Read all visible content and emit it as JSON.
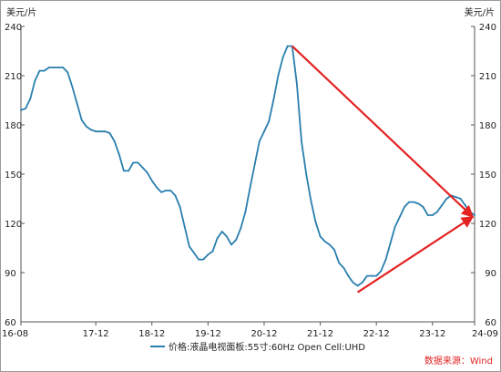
{
  "chart_data": {
    "type": "line",
    "title": "",
    "unit_left": "美元/片",
    "unit_right": "美元/片",
    "ylim": [
      60,
      240
    ],
    "y_ticks": [
      60,
      90,
      120,
      150,
      180,
      210,
      240
    ],
    "x_ticks": [
      "16-08",
      "17-12",
      "18-12",
      "19-12",
      "20-12",
      "21-12",
      "22-12",
      "23-12",
      "24-09"
    ],
    "grid": false,
    "legend_position": "bottom",
    "series": [
      {
        "name": "价格:液晶电视面板:55寸:60Hz Open Cell:UHD",
        "color": "#2a7fae",
        "points": [
          [
            "2016-08",
            189
          ],
          [
            "2016-09",
            190
          ],
          [
            "2016-10",
            196
          ],
          [
            "2016-11",
            207
          ],
          [
            "2016-12",
            213
          ],
          [
            "2017-01",
            213
          ],
          [
            "2017-02",
            215
          ],
          [
            "2017-03",
            215
          ],
          [
            "2017-04",
            215
          ],
          [
            "2017-05",
            215
          ],
          [
            "2017-06",
            212
          ],
          [
            "2017-07",
            203
          ],
          [
            "2017-08",
            193
          ],
          [
            "2017-09",
            183
          ],
          [
            "2017-10",
            179
          ],
          [
            "2017-11",
            177
          ],
          [
            "2017-12",
            176
          ],
          [
            "2018-01",
            176
          ],
          [
            "2018-02",
            176
          ],
          [
            "2018-03",
            175
          ],
          [
            "2018-04",
            170
          ],
          [
            "2018-05",
            162
          ],
          [
            "2018-06",
            152
          ],
          [
            "2018-07",
            152
          ],
          [
            "2018-08",
            157
          ],
          [
            "2018-09",
            157
          ],
          [
            "2018-10",
            154
          ],
          [
            "2018-11",
            151
          ],
          [
            "2018-12",
            146
          ],
          [
            "2019-01",
            142
          ],
          [
            "2019-02",
            139
          ],
          [
            "2019-03",
            140
          ],
          [
            "2019-04",
            140
          ],
          [
            "2019-05",
            137
          ],
          [
            "2019-06",
            130
          ],
          [
            "2019-07",
            118
          ],
          [
            "2019-08",
            106
          ],
          [
            "2019-09",
            102
          ],
          [
            "2019-10",
            98
          ],
          [
            "2019-11",
            98
          ],
          [
            "2019-12",
            101
          ],
          [
            "2020-01",
            103
          ],
          [
            "2020-02",
            111
          ],
          [
            "2020-03",
            115
          ],
          [
            "2020-04",
            112
          ],
          [
            "2020-05",
            107
          ],
          [
            "2020-06",
            110
          ],
          [
            "2020-07",
            117
          ],
          [
            "2020-08",
            127
          ],
          [
            "2020-09",
            142
          ],
          [
            "2020-10",
            156
          ],
          [
            "2020-11",
            170
          ],
          [
            "2020-12",
            176
          ],
          [
            "2021-01",
            182
          ],
          [
            "2021-02",
            195
          ],
          [
            "2021-03",
            210
          ],
          [
            "2021-04",
            221
          ],
          [
            "2021-05",
            228
          ],
          [
            "2021-06",
            228
          ],
          [
            "2021-07",
            205
          ],
          [
            "2021-08",
            170
          ],
          [
            "2021-09",
            150
          ],
          [
            "2021-10",
            134
          ],
          [
            "2021-11",
            121
          ],
          [
            "2021-12",
            112
          ],
          [
            "2022-01",
            109
          ],
          [
            "2022-02",
            107
          ],
          [
            "2022-03",
            104
          ],
          [
            "2022-04",
            96
          ],
          [
            "2022-05",
            93
          ],
          [
            "2022-06",
            88
          ],
          [
            "2022-07",
            84
          ],
          [
            "2022-08",
            82
          ],
          [
            "2022-09",
            84
          ],
          [
            "2022-10",
            88
          ],
          [
            "2022-11",
            88
          ],
          [
            "2022-12",
            88
          ],
          [
            "2023-01",
            91
          ],
          [
            "2023-02",
            98
          ],
          [
            "2023-03",
            108
          ],
          [
            "2023-04",
            118
          ],
          [
            "2023-05",
            124
          ],
          [
            "2023-06",
            130
          ],
          [
            "2023-07",
            133
          ],
          [
            "2023-08",
            133
          ],
          [
            "2023-09",
            132
          ],
          [
            "2023-10",
            130
          ],
          [
            "2023-11",
            125
          ],
          [
            "2023-12",
            125
          ],
          [
            "2024-01",
            127
          ],
          [
            "2024-02",
            131
          ],
          [
            "2024-03",
            135
          ],
          [
            "2024-04",
            137
          ],
          [
            "2024-05",
            136
          ],
          [
            "2024-06",
            135
          ],
          [
            "2024-07",
            131
          ],
          [
            "2024-08",
            127
          ],
          [
            "2024-09",
            125
          ]
        ]
      }
    ],
    "annotation_arrows": [
      {
        "from": [
          "2021-06",
          228
        ],
        "to": [
          "2024-09",
          124
        ],
        "color": "#e32222"
      },
      {
        "from": [
          "2022-08",
          78
        ],
        "to": [
          "2024-09",
          124
        ],
        "color": "#e32222"
      }
    ]
  },
  "footer": {
    "source_text": "数据来源：Wind",
    "source_color": "#e32222"
  }
}
